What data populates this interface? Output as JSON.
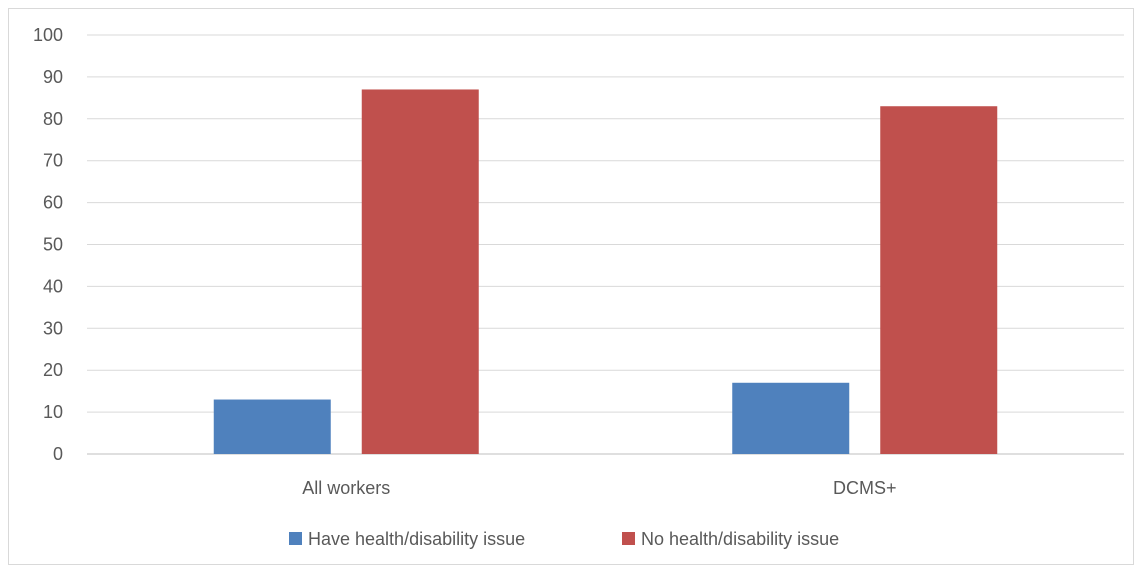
{
  "chart_data": {
    "type": "bar",
    "categories": [
      "All workers",
      "DCMS+"
    ],
    "series": [
      {
        "name": "Have health/disability issue",
        "values": [
          13,
          17
        ],
        "color": "#4f81bd"
      },
      {
        "name": "No health/disability issue",
        "values": [
          87,
          83
        ],
        "color": "#c0504d"
      }
    ],
    "ylim": [
      0,
      100
    ],
    "yticks": [
      0,
      10,
      20,
      30,
      40,
      50,
      60,
      70,
      80,
      90,
      100
    ],
    "grid": true,
    "legend_position": "bottom",
    "title": "",
    "xlabel": "",
    "ylabel": ""
  }
}
